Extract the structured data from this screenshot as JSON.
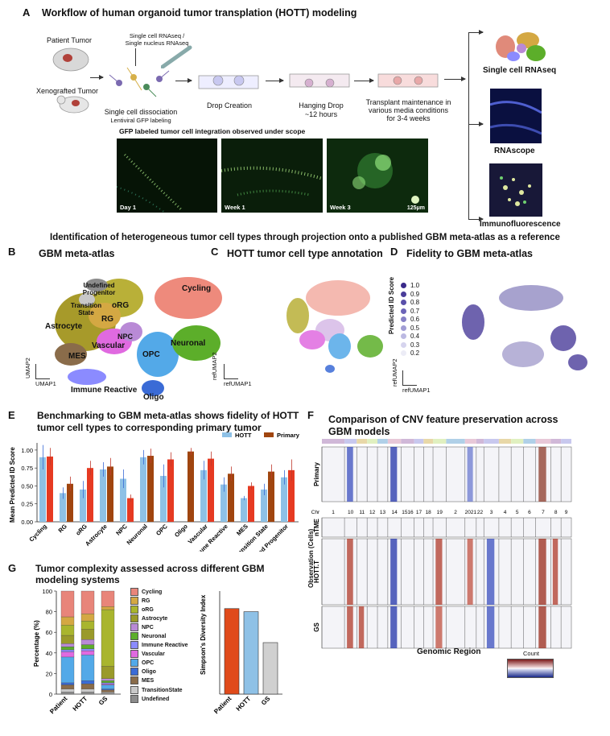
{
  "panel_a": {
    "letter": "A",
    "title": "Workflow of human organoid tumor transplation (HOTT) modeling",
    "patient_tumor": "Patient Tumor",
    "xenografted_tumor": "Xenografted Tumor",
    "rnaseq_label_1": "Single cell RNAseq /",
    "rnaseq_label_2": "Single nucleus RNAseq",
    "dissociation_1": "Single cell dissociation",
    "dissociation_2": "Lentiviral GFP labeling",
    "drop_creation": "Drop Creation",
    "hanging_drop_1": "Hanging Drop",
    "hanging_drop_2": "~12 hours",
    "transplant_1": "Transplant maintenance in",
    "transplant_2": "various media conditions",
    "transplant_3": "for 3-4 weeks",
    "gfp_caption": "GFP labeled tumor cell integration observed under scope",
    "day1": "Day 1",
    "week1": "Week 1",
    "week3": "Week 3",
    "scalebar": "125μm",
    "out_scrna": "Single cell RNAseq",
    "out_rnascope": "RNAscope",
    "out_if": "Immunofluorescence"
  },
  "section_title": "Identification of heterogeneous tumor cell types through projection onto a published GBM meta-atlas as a reference",
  "panel_b": {
    "letter": "B",
    "title": "GBM meta-atlas",
    "labels": [
      "Undefined Progenitor",
      "Transition State",
      "oRG",
      "RG",
      "Cycling",
      "Astrocyte",
      "NPC",
      "Vascular",
      "MES",
      "OPC",
      "Neuronal",
      "Immune Reactive",
      "Oligo"
    ],
    "x_axis": "UMAP1",
    "y_axis": "UMAP2"
  },
  "panel_c": {
    "letter": "C",
    "title": "HOTT tumor cell type annotation",
    "x_axis": "refUMAP1",
    "y_axis": "refUMAP2"
  },
  "panel_d": {
    "letter": "D",
    "title": "Fidelity to GBM meta-atlas",
    "legend_title": "Predicted ID Score",
    "legend_values": [
      "1.0",
      "0.9",
      "0.8",
      "0.7",
      "0.6",
      "0.5",
      "0.4",
      "0.3",
      "0.2"
    ],
    "x_axis": "refUMAP1",
    "y_axis": "refUMAP2"
  },
  "panel_e": {
    "letter": "E",
    "title_1": "Benchmarking to GBM meta-atlas shows fidelity of HOTT",
    "title_2": "tumor cell types to corresponding primary tumor"
  },
  "panel_f": {
    "letter": "F",
    "title_1": "Comparison of CNV feature preservation across",
    "title_2": "GBM models",
    "chr_label": "Chr",
    "chromosomes": [
      "1",
      "10",
      "11",
      "12",
      "13",
      "14",
      "1516",
      "17",
      "18",
      "19",
      "2",
      "2021",
      "22",
      "3",
      "4",
      "5",
      "6",
      "7",
      "8",
      "9"
    ],
    "row_primary": "Primary",
    "row_ntme": "nTME",
    "row_hott": "HOTT.T",
    "row_gs": "GS",
    "y_axis": "Observation (Cells)",
    "x_axis": "Genomic Region",
    "count_label": "Count"
  },
  "panel_g": {
    "letter": "G",
    "title_1": "Tumor complexity assessed across different GBM",
    "title_2": "modeling systems",
    "legend": [
      "Cycling",
      "RG",
      "oRG",
      "Astrocyte",
      "NPC",
      "Neuronal",
      "Immune Reactive",
      "Vascular",
      "OPC",
      "Oligo",
      "MES",
      "TransitionState",
      "Undefined"
    ]
  },
  "colors": {
    "hott": "#8ec1e6",
    "primary": "#a0450f",
    "cycling": "#e8857a",
    "rg": "#d4a843",
    "org": "#a9b52e",
    "astrocyte": "#9a9a2a",
    "npc": "#b98ad6",
    "neuronal": "#5cae2a",
    "immune": "#8b8bff",
    "vascular": "#e06ae0",
    "opc": "#53a9e8",
    "oligo": "#3a6bd6",
    "mes": "#8a6c4a",
    "transition": "#c8c8c8",
    "undefined": "#8c8c8c"
  },
  "chart_data": [
    {
      "type": "bar",
      "title": "Benchmarking to GBM meta-atlas shows fidelity of HOTT tumor cell types to corresponding primary tumor",
      "ylabel": "Mean Predicted ID Score",
      "ylim": [
        0,
        1.1
      ],
      "yticks": [
        "0.00",
        "0.25",
        "0.50",
        "0.75",
        "1.00"
      ],
      "categories": [
        "Cycling",
        "RG",
        "oRG",
        "Astrocyte",
        "NPC",
        "Neuronal",
        "OPC",
        "Oligo",
        "Vascular",
        "Immune Reactive",
        "MES",
        "Transition State",
        "Undefined Progenitor"
      ],
      "series": [
        {
          "name": "HOTT",
          "values": [
            0.9,
            0.4,
            0.45,
            0.73,
            0.6,
            0.9,
            0.64,
            null,
            0.72,
            0.52,
            0.33,
            0.45,
            0.62
          ],
          "err": [
            0.17,
            0.08,
            0.12,
            0.1,
            0.13,
            0.1,
            0.16,
            null,
            0.13,
            0.1,
            0.03,
            0.08,
            0.1
          ]
        },
        {
          "name": "Primary",
          "values": [
            0.91,
            0.53,
            0.75,
            0.77,
            0.33,
            0.92,
            0.87,
            0.98,
            0.88,
            0.67,
            0.5,
            0.7,
            0.72
          ],
          "err": [
            0.12,
            0.1,
            0.1,
            0.12,
            0.05,
            0.1,
            0.1,
            0.05,
            0.1,
            0.1,
            0.05,
            0.1,
            0.15
          ]
        }
      ]
    },
    {
      "type": "bar",
      "stacked": true,
      "ylabel": "Percentage (%)",
      "ylim": [
        0,
        100
      ],
      "yticks": [
        "0",
        "20",
        "40",
        "60",
        "80",
        "100"
      ],
      "categories": [
        "Patient",
        "HOTT",
        "GS"
      ],
      "series": [
        {
          "name": "Cycling",
          "values": [
            25,
            22,
            15
          ]
        },
        {
          "name": "RG",
          "values": [
            8,
            7,
            3
          ]
        },
        {
          "name": "oRG",
          "values": [
            10,
            8,
            55
          ]
        },
        {
          "name": "Astrocyte",
          "values": [
            8,
            10,
            12
          ]
        },
        {
          "name": "NPC",
          "values": [
            3,
            5,
            2
          ]
        },
        {
          "name": "Neuronal",
          "values": [
            3,
            4,
            2
          ]
        },
        {
          "name": "Immune Reactive",
          "values": [
            2,
            2,
            1
          ]
        },
        {
          "name": "Vascular",
          "values": [
            5,
            4,
            1
          ]
        },
        {
          "name": "OPC",
          "values": [
            25,
            25,
            4
          ]
        },
        {
          "name": "Oligo",
          "values": [
            2,
            3,
            1
          ]
        },
        {
          "name": "MES",
          "values": [
            4,
            5,
            2
          ]
        },
        {
          "name": "TransitionState",
          "values": [
            3,
            3,
            1
          ]
        },
        {
          "name": "Undefined",
          "values": [
            2,
            2,
            1
          ]
        }
      ]
    },
    {
      "type": "bar",
      "ylabel": "Simpson's Diversity Index",
      "ylim": [
        0,
        1.0
      ],
      "categories": [
        "Patient",
        "HOTT",
        "GS"
      ],
      "values": [
        0.83,
        0.8,
        0.5
      ],
      "colors": [
        "#e04a1a",
        "#8ec1e6",
        "#d0d0d0"
      ]
    }
  ]
}
